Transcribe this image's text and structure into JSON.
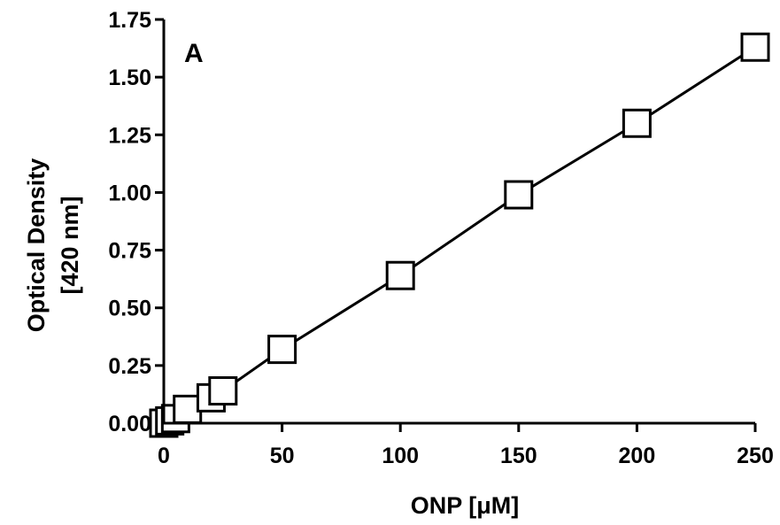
{
  "chart_data": {
    "type": "line",
    "panel_label": "A",
    "xlabel": "ONP [μM]",
    "ylabel_lines": [
      "Optical Density",
      "[420 nm]"
    ],
    "xlim": [
      0,
      250
    ],
    "ylim": [
      0,
      1.75
    ],
    "x_ticks": [
      0,
      50,
      100,
      150,
      200,
      250
    ],
    "x_tick_labels": [
      "0",
      "50",
      "100",
      "150",
      "200",
      "250"
    ],
    "y_ticks": [
      0,
      0.25,
      0.5,
      0.75,
      1.0,
      1.25,
      1.5,
      1.75
    ],
    "y_tick_labels": [
      "0.00",
      "0.25",
      "0.50",
      "0.75",
      "1.00",
      "1.25",
      "1.50",
      "1.75"
    ],
    "grid": false,
    "series": [
      {
        "x": [
          0,
          2.5,
          5,
          10,
          20,
          25,
          50,
          100,
          150,
          200,
          250
        ],
        "y": [
          0.0,
          0.01,
          0.02,
          0.06,
          0.11,
          0.14,
          0.32,
          0.64,
          0.99,
          1.3,
          1.63
        ],
        "marker": "open-square",
        "color": "#000000"
      }
    ]
  }
}
